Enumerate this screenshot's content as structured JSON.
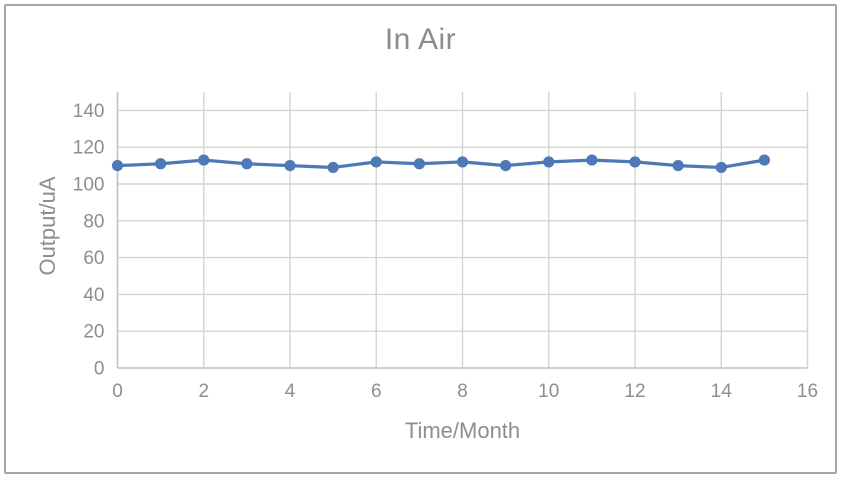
{
  "window": {
    "background": "#FFFFFF",
    "border_color": "#A6A6A6"
  },
  "chart_data": {
    "type": "line",
    "title": "In Air",
    "xlabel": "Time/Month",
    "ylabel": "Output/uA",
    "x": [
      0,
      1,
      2,
      3,
      4,
      5,
      6,
      7,
      8,
      9,
      10,
      11,
      12,
      13,
      14,
      15
    ],
    "values": [
      110,
      111,
      113,
      111,
      110,
      109,
      112,
      111,
      112,
      110,
      112,
      113,
      112,
      110,
      109,
      113
    ],
    "xlim": [
      0,
      16
    ],
    "ylim": [
      0,
      150
    ],
    "x_ticks": [
      0,
      2,
      4,
      6,
      8,
      10,
      12,
      14,
      16
    ],
    "y_ticks": [
      0,
      20,
      40,
      60,
      80,
      100,
      120,
      140
    ],
    "grid": true,
    "legend": "none",
    "series_color": "#4E79B7",
    "gridline_color": "#D4D4D4",
    "axis_line_color": "#BFBFBF",
    "label_color": "#8E8E8E",
    "title_color": "#8C8C8C"
  }
}
